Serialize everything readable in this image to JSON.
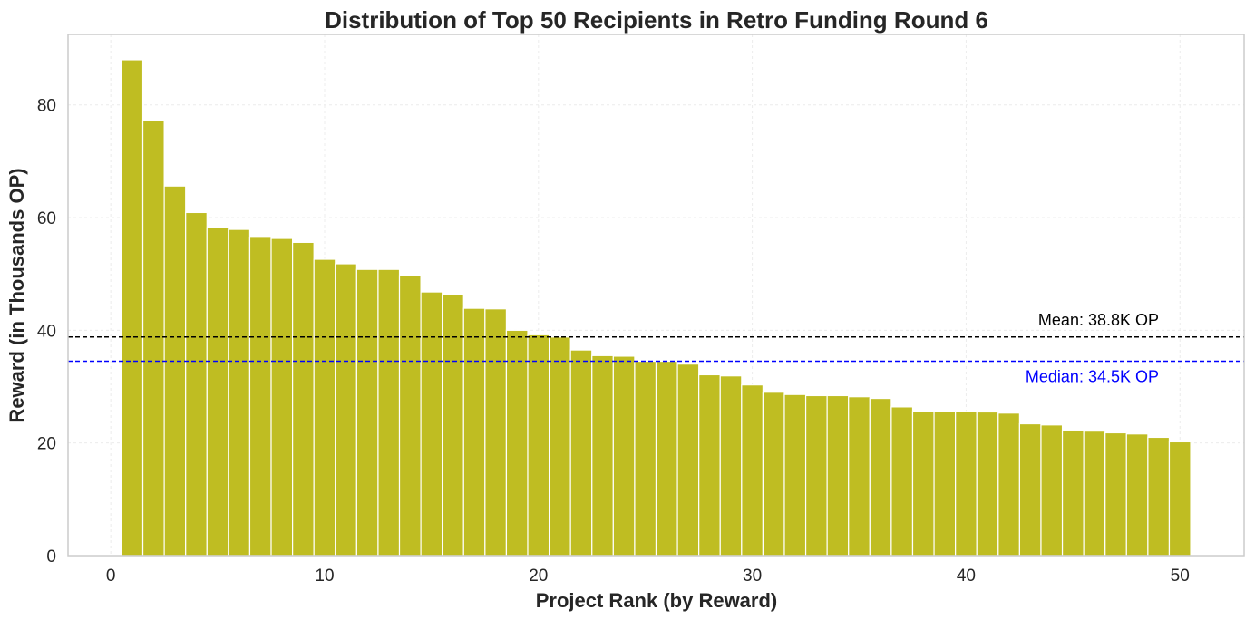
{
  "chart_data": {
    "type": "bar",
    "title": "Distribution of Top 50 Recipients in Retro Funding Round 6",
    "xlabel": "Project Rank (by Reward)",
    "ylabel": "Reward (in Thousands OP)",
    "x": [
      1,
      2,
      3,
      4,
      5,
      6,
      7,
      8,
      9,
      10,
      11,
      12,
      13,
      14,
      15,
      16,
      17,
      18,
      19,
      20,
      21,
      22,
      23,
      24,
      25,
      26,
      27,
      28,
      29,
      30,
      31,
      32,
      33,
      34,
      35,
      36,
      37,
      38,
      39,
      40,
      41,
      42,
      43,
      44,
      45,
      46,
      47,
      48,
      49,
      50
    ],
    "values": [
      88.0,
      77.3,
      65.6,
      60.9,
      58.2,
      57.9,
      56.5,
      56.3,
      55.6,
      52.6,
      51.8,
      50.8,
      50.8,
      49.7,
      46.8,
      46.3,
      43.9,
      43.8,
      40.0,
      39.2,
      38.8,
      36.5,
      35.5,
      35.4,
      34.5,
      34.5,
      34.0,
      32.1,
      31.9,
      30.3,
      29.0,
      28.6,
      28.4,
      28.4,
      28.2,
      27.9,
      26.4,
      25.6,
      25.6,
      25.6,
      25.5,
      25.3,
      23.4,
      23.2,
      22.3,
      22.1,
      21.8,
      21.6,
      21.0,
      20.2
    ],
    "xlim": [
      -2,
      53
    ],
    "ylim": [
      0,
      92.5
    ],
    "xticks": [
      "0",
      "10",
      "20",
      "30",
      "40",
      "50"
    ],
    "yticks": [
      "0",
      "20",
      "40",
      "60",
      "80"
    ],
    "reference_lines": [
      {
        "label": "Mean: 38.8K OP",
        "value": 38.8,
        "color": "#000000"
      },
      {
        "label": "Median: 34.5K OP",
        "value": 34.5,
        "color": "#0000ff"
      }
    ],
    "bar_color": "#bfbd22",
    "grid": true
  }
}
